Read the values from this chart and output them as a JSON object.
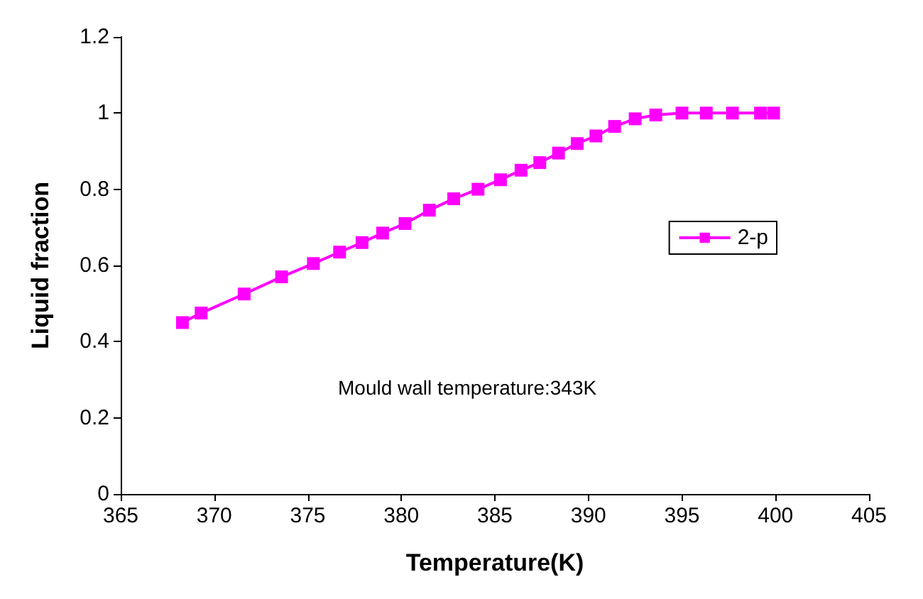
{
  "chart_data": {
    "type": "line",
    "xlabel": "Temperature(K)",
    "ylabel": "Liquid fraction",
    "x": [
      368.3,
      369.3,
      371.6,
      373.6,
      375.3,
      376.7,
      377.9,
      379.0,
      380.2,
      381.5,
      382.8,
      384.1,
      385.3,
      386.4,
      387.4,
      388.4,
      389.4,
      390.4,
      391.4,
      392.5,
      393.6,
      395.0,
      396.3,
      397.7,
      399.2,
      399.9
    ],
    "series": [
      {
        "name": "2-p",
        "color": "#ff00ff",
        "values": [
          0.45,
          0.475,
          0.525,
          0.57,
          0.605,
          0.635,
          0.66,
          0.685,
          0.71,
          0.745,
          0.775,
          0.8,
          0.825,
          0.85,
          0.87,
          0.895,
          0.92,
          0.94,
          0.965,
          0.985,
          0.995,
          1.0,
          1.0,
          1.0,
          1.0,
          1.0
        ]
      }
    ],
    "xlim": [
      365,
      405
    ],
    "xticks": [
      365,
      370,
      375,
      380,
      385,
      390,
      395,
      400,
      405
    ],
    "ylim": [
      0,
      1.2
    ],
    "yticks": [
      0,
      0.2,
      0.4,
      0.6,
      0.8,
      1,
      1.2
    ],
    "annotations": [
      "Mould wall temperature:343K"
    ],
    "legend": "right",
    "marker": "square",
    "line_style": "solid",
    "grid": false
  }
}
